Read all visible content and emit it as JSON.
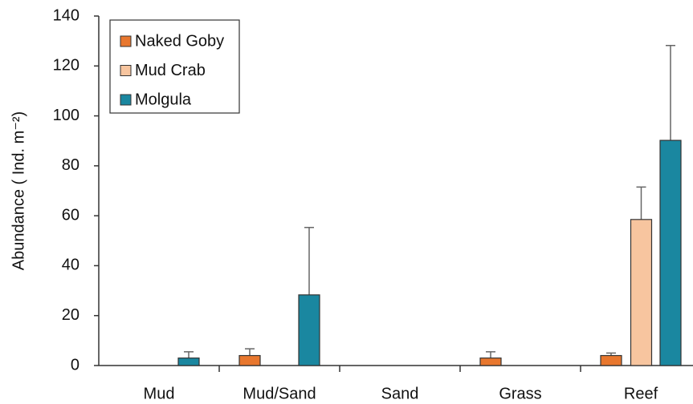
{
  "chart_data": {
    "type": "bar",
    "y_label": "Abundance ( Ind. m⁻²)",
    "categories": [
      "Mud",
      "Mud/Sand",
      "Sand",
      "Grass",
      "Reef"
    ],
    "series": [
      {
        "name": "Naked Goby",
        "color": "#e8772e",
        "values": [
          0,
          4,
          0,
          3,
          4
        ],
        "errors": [
          null,
          2.7,
          null,
          2.5,
          1
        ]
      },
      {
        "name": "Mud Crab",
        "color": "#f7c59f",
        "values": [
          0,
          0,
          0,
          0,
          58.5
        ],
        "errors": [
          null,
          null,
          null,
          null,
          13
        ]
      },
      {
        "name": "Molgula",
        "color": "#1a87a0",
        "values": [
          3,
          28.3,
          0,
          0,
          90.2
        ],
        "errors": [
          2.5,
          27,
          null,
          null,
          38
        ]
      }
    ],
    "ylim": [
      0,
      140
    ],
    "yticks": [
      0,
      20,
      40,
      60,
      80,
      100,
      120,
      140
    ],
    "legend": "upper left"
  }
}
